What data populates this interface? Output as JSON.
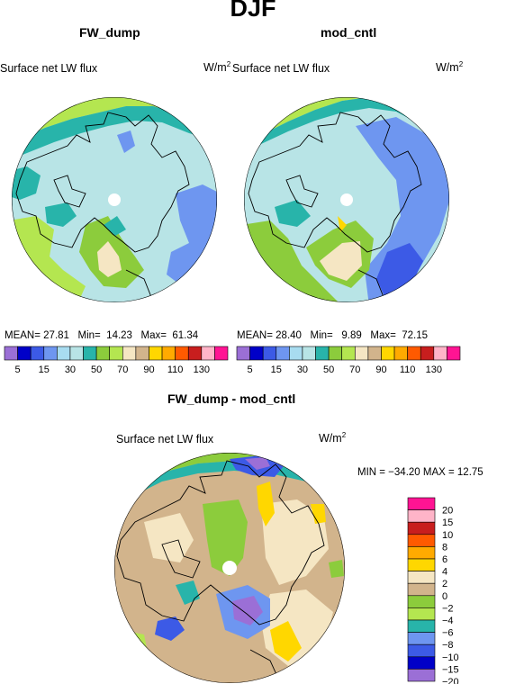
{
  "figure": {
    "title": "DJF",
    "panels": [
      {
        "title": "FW_dump",
        "variable": "Surface net LW flux",
        "unit_base": "W/m",
        "unit_exp": "2",
        "stats": {
          "mean_label": "MEAN=",
          "mean": "27.81",
          "min_label": "Min=",
          "min": "14.23",
          "max_label": "Max=",
          "max": "61.34"
        }
      },
      {
        "title": "mod_cntl",
        "variable": "Surface net LW flux",
        "unit_base": "W/m",
        "unit_exp": "2",
        "stats": {
          "mean_label": "MEAN=",
          "mean": "28.40",
          "min_label": "Min=",
          "min": "9.89",
          "max_label": "Max=",
          "max": "72.15"
        }
      },
      {
        "title": "FW_dump - mod_cntl",
        "variable": "Surface net LW flux",
        "unit_base": "W/m",
        "unit_exp": "2",
        "stats_text": "MIN = −34.20  MAX =  12.75"
      }
    ]
  },
  "chart_data": [
    {
      "type": "heatmap",
      "title": "FW_dump",
      "subtitle": "Surface net LW flux",
      "units": "W/m2",
      "projection": "polar-stereographic",
      "stats": {
        "mean": 27.81,
        "min": 14.23,
        "max": 61.34
      },
      "colorbar": {
        "orientation": "horizontal",
        "levels": [
          5,
          15,
          30,
          50,
          70,
          90,
          110,
          130
        ],
        "tick_labels": [
          "5",
          "15",
          "30",
          "50",
          "70",
          "90",
          "110",
          "130"
        ],
        "colors": [
          "#9b6fd6",
          "#0000c8",
          "#3c5ae6",
          "#6e96f0",
          "#a8dcf0",
          "#b8e4e6",
          "#28b4aa",
          "#8ccc3c",
          "#b4e650",
          "#f5e6c3",
          "#d2b48c",
          "#ffd700",
          "#ffaa00",
          "#ff5a00",
          "#c81e1e",
          "#ffb4c8",
          "#ff1493"
        ]
      }
    },
    {
      "type": "heatmap",
      "title": "mod_cntl",
      "subtitle": "Surface net LW flux",
      "units": "W/m2",
      "projection": "polar-stereographic",
      "stats": {
        "mean": 28.4,
        "min": 9.89,
        "max": 72.15
      },
      "colorbar": {
        "orientation": "horizontal",
        "levels": [
          5,
          15,
          30,
          50,
          70,
          90,
          110,
          130
        ],
        "tick_labels": [
          "5",
          "15",
          "30",
          "50",
          "70",
          "90",
          "110",
          "130"
        ],
        "colors": [
          "#9b6fd6",
          "#0000c8",
          "#3c5ae6",
          "#6e96f0",
          "#a8dcf0",
          "#b8e4e6",
          "#28b4aa",
          "#8ccc3c",
          "#b4e650",
          "#f5e6c3",
          "#d2b48c",
          "#ffd700",
          "#ffaa00",
          "#ff5a00",
          "#c81e1e",
          "#ffb4c8",
          "#ff1493"
        ]
      }
    },
    {
      "type": "heatmap",
      "title": "FW_dump - mod_cntl",
      "subtitle": "Surface net LW flux",
      "units": "W/m2",
      "projection": "polar-stereographic",
      "stats": {
        "min": -34.2,
        "max": 12.75
      },
      "colorbar": {
        "orientation": "vertical",
        "tick_labels": [
          "20",
          "15",
          "10",
          "8",
          "6",
          "4",
          "2",
          "0",
          "−2",
          "−4",
          "−6",
          "−8",
          "−10",
          "−15",
          "−20"
        ],
        "colors": [
          "#ff1493",
          "#ffb4c8",
          "#c81e1e",
          "#ff5a00",
          "#ffaa00",
          "#ffd700",
          "#f5e6c3",
          "#d2b48c",
          "#8ccc3c",
          "#b4e650",
          "#28b4aa",
          "#6e96f0",
          "#3c5ae6",
          "#0000c8",
          "#9b6fd6"
        ]
      }
    }
  ],
  "map_colors": {
    "ocean_low": "#b8e4e6",
    "ocean_mid": "#6e96f0",
    "ocean_deep": "#3c5ae6",
    "teal": "#28b4aa",
    "green": "#8ccc3c",
    "lightgreen": "#b4e650",
    "cream": "#f5e6c3",
    "tan": "#d2b48c",
    "yellow": "#ffd700",
    "orange": "#ffaa00",
    "purple": "#9b6fd6",
    "navy": "#0000c8",
    "cyan": "#a8dcf0"
  }
}
